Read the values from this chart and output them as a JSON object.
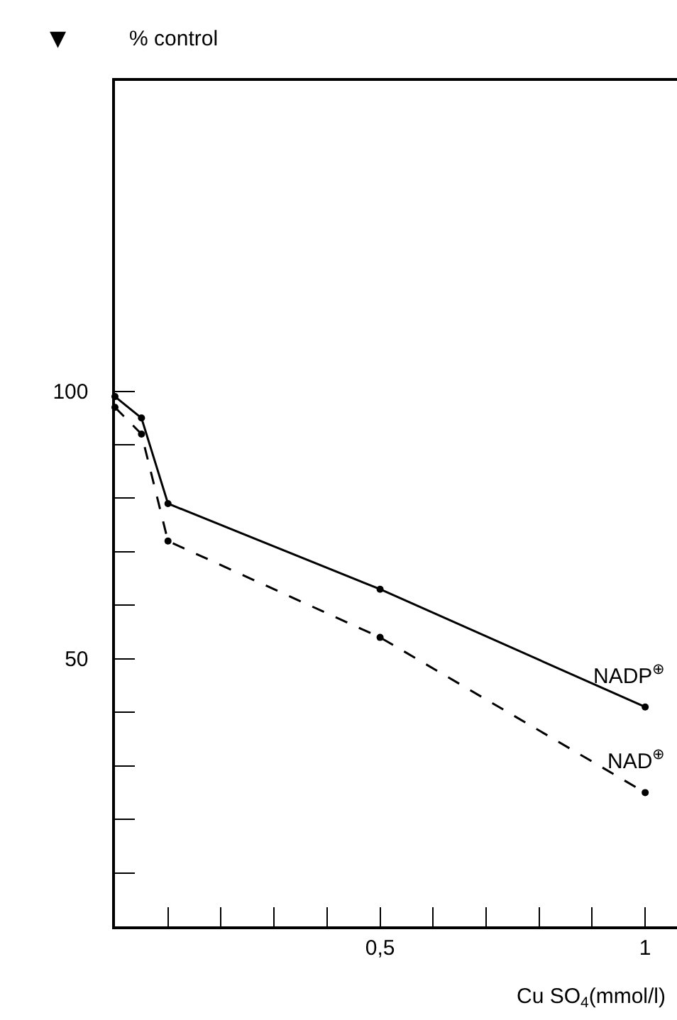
{
  "chart_data": {
    "type": "line",
    "ylabel": "% control",
    "xlabel": "Cu SO$_{4}$(mmol/l)",
    "annotations": [
      "▼"
    ],
    "x": [
      0,
      0.05,
      0.1,
      0.5,
      1
    ],
    "series": [
      {
        "name": "NADP$^{⊕}$",
        "color": "#000000",
        "line_style": "solid",
        "values": [
          99,
          95,
          79,
          63,
          41
        ]
      },
      {
        "name": "NAD$^{⊕}$",
        "color": "#000000",
        "line_style": "dashed",
        "values": [
          97,
          92,
          72,
          54,
          25
        ]
      }
    ],
    "xlim": [
      0,
      1.06
    ],
    "ylim": [
      0,
      158
    ],
    "xticks": [
      {
        "value": 0.1,
        "label": null
      },
      {
        "value": 0.2,
        "label": null
      },
      {
        "value": 0.3,
        "label": null
      },
      {
        "value": 0.4,
        "label": null
      },
      {
        "value": 0.5,
        "label": "0,5"
      },
      {
        "value": 0.6,
        "label": null
      },
      {
        "value": 0.7,
        "label": null
      },
      {
        "value": 0.8,
        "label": null
      },
      {
        "value": 0.9,
        "label": null
      },
      {
        "value": 1,
        "label": "1"
      }
    ],
    "yticks": [
      {
        "value": 10,
        "label": null
      },
      {
        "value": 20,
        "label": null
      },
      {
        "value": 30,
        "label": null
      },
      {
        "value": 40,
        "label": null
      },
      50,
      {
        "value": 60,
        "label": null
      },
      {
        "value": 70,
        "label": null
      },
      {
        "value": 80,
        "label": null
      },
      {
        "value": 90,
        "label": null
      },
      100
    ],
    "marker": "circle",
    "grid": false,
    "legend": false
  }
}
